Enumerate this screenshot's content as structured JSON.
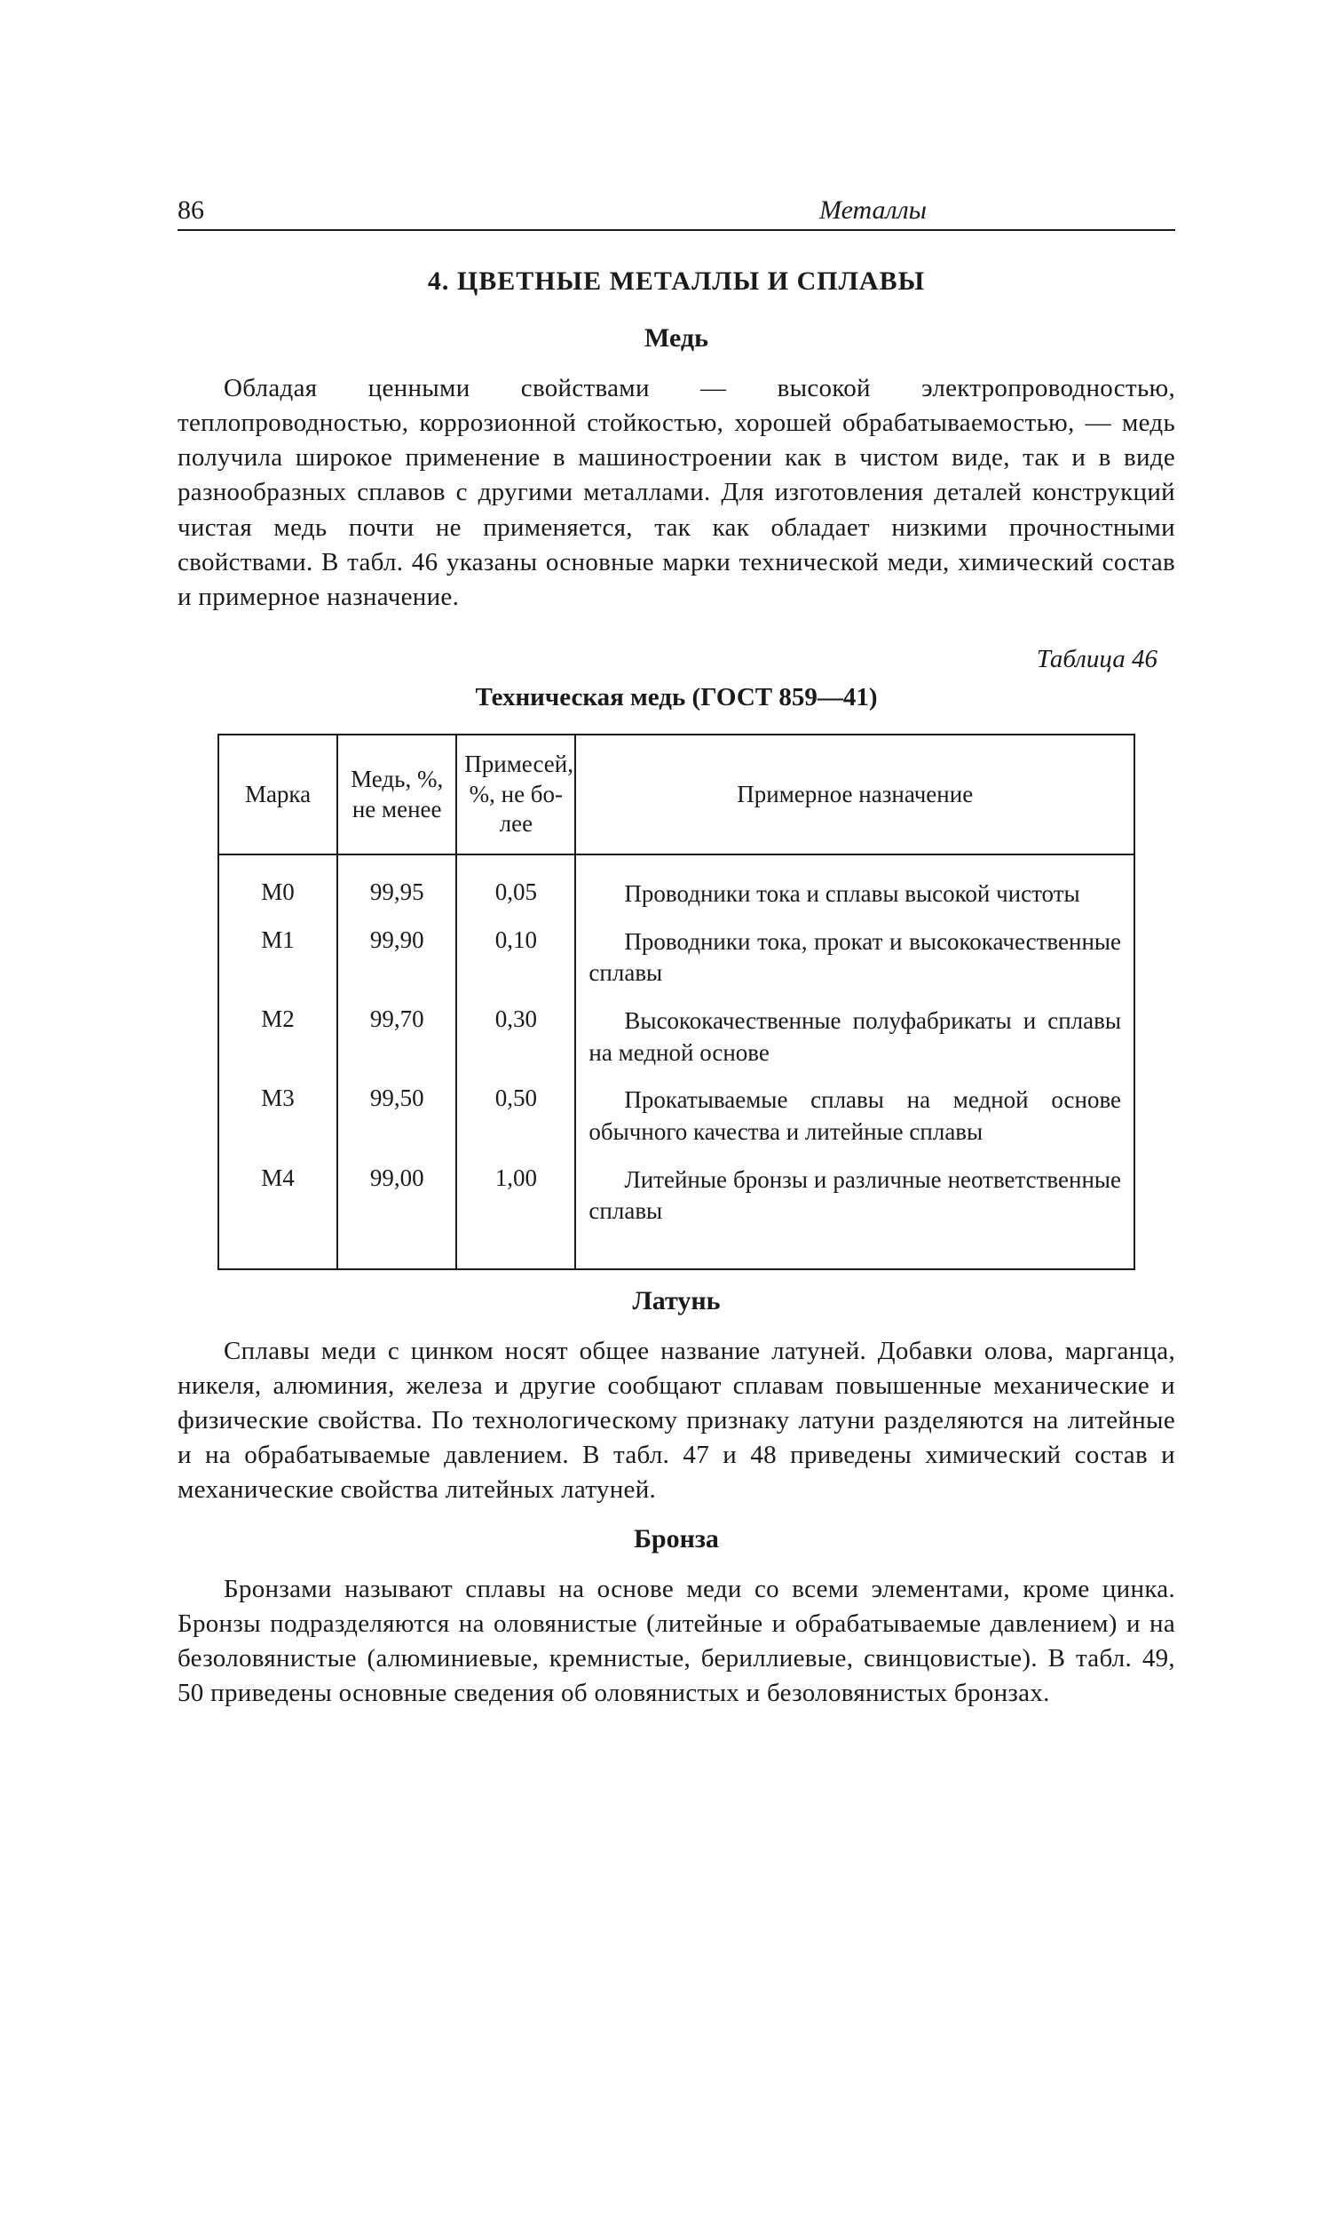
{
  "page": {
    "number": "86",
    "running_title": "Металлы"
  },
  "section": {
    "title": "4. ЦВЕТНЫЕ МЕТАЛЛЫ И СПЛАВЫ"
  },
  "copper": {
    "heading": "Медь",
    "paragraph": "Обладая ценными свойствами — высокой электропроводностью, теплопроводностью, коррозионной стойкостью, хорошей обрабаты­ваемостью, — медь получила широкое применение в машинострое­нии как в чистом виде, так и в виде разнообразных сплавов с дру­гими металлами. Для изготовления деталей конструкций чистая медь почти не применяется, так как обладает низкими прочностны­ми свойствами. В табл. 46 указаны основные марки технической меди, химический состав и примерное назначение."
  },
  "table46": {
    "label": "Таблица 46",
    "caption": "Техническая медь (ГОСТ 859—41)",
    "headers": {
      "marka": "Марка",
      "med": "Медь, %, не менее",
      "primesej": "Примесей, %, не бо­лее",
      "naznachenie": "Примерное назначение"
    },
    "rows": [
      {
        "marka": "М0",
        "med": "99,95",
        "prim": "0,05",
        "nazn": "Проводники тока и сплавы вы­сокой чистоты"
      },
      {
        "marka": "М1",
        "med": "99,90",
        "prim": "0,10",
        "nazn": "Проводники тока, прокат и вы­сококачественные сплавы"
      },
      {
        "marka": "М2",
        "med": "99,70",
        "prim": "0,30",
        "nazn": "Высококачественные полуфабри­каты и сплавы на медной основе"
      },
      {
        "marka": "М3",
        "med": "99,50",
        "prim": "0,50",
        "nazn": "Прокатываемые сплавы на мед­ной основе обычного качества и ли­тейные сплавы"
      },
      {
        "marka": "М4",
        "med": "99,00",
        "prim": "1,00",
        "nazn": "Литейные бронзы и различные неответственные сплавы"
      }
    ]
  },
  "brass": {
    "heading": "Латунь",
    "paragraph": "Сплавы меди с цинком носят общее название латуней. Добавки олова, марганца, никеля, алюминия, железа и другие сообщают сплавам повышенные механические и физические свойства. По тех­нологическому признаку латуни разделяются на литейные и на об­рабатываемые давлением. В табл. 47 и 48 приведены химический состав и механические свойства литейных латуней."
  },
  "bronze": {
    "heading": "Бронза",
    "paragraph": "Бронзами называют сплавы на основе меди со всеми элемента­ми, кроме цинка. Бронзы подразделяются на оловянистые (литей­ные и обрабатываемые давлением) и на безоловянистые (алюми­ниевые, кремнистые, бериллиевые, свинцовистые). В табл. 49, 50 приведены основные сведения об оловянистых и безоловянистых бронзах."
  },
  "style": {
    "text_color": "#1a1a1a",
    "background": "#ffffff",
    "body_font_size_pt": 11,
    "heading_font_size_pt": 12,
    "rule_color": "#1a1a1a"
  }
}
